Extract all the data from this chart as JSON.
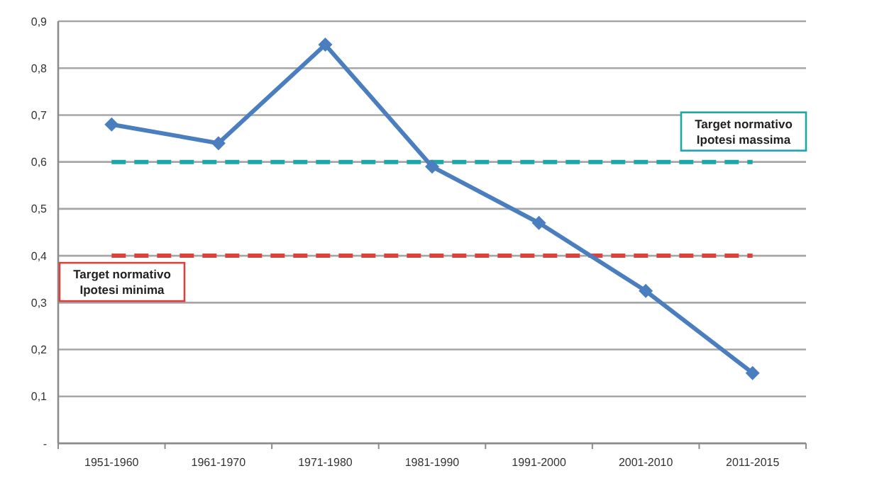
{
  "chart_data": {
    "type": "line",
    "categories": [
      "1951-1960",
      "1961-1970",
      "1971-1980",
      "1981-1990",
      "1991-2000",
      "2001-2010",
      "2011-2015"
    ],
    "series": [
      {
        "color": "#4a7ebf",
        "values": [
          0.68,
          0.64,
          0.85,
          0.59,
          0.47,
          0.325,
          0.15
        ]
      }
    ],
    "ylim": [
      0,
      0.9
    ],
    "yticks": [
      {
        "value": 0,
        "label": "-"
      },
      {
        "value": 0.1,
        "label": "0,1"
      },
      {
        "value": 0.2,
        "label": "0,2"
      },
      {
        "value": 0.3,
        "label": "0,3"
      },
      {
        "value": 0.4,
        "label": "0,4"
      },
      {
        "value": 0.5,
        "label": "0,5"
      },
      {
        "value": 0.6,
        "label": "0,6"
      },
      {
        "value": 0.7,
        "label": "0,7"
      },
      {
        "value": 0.8,
        "label": "0,8"
      },
      {
        "value": 0.9,
        "label": "0,9"
      }
    ],
    "ref_lines": [
      {
        "axis": "y",
        "value": 0.6,
        "label": "Target normativo\nIpotesi massima",
        "color": "#1ba8a8",
        "line_style": "dashed"
      },
      {
        "axis": "y",
        "value": 0.4,
        "label": "Target normativo\nIpotesi minima",
        "color": "#d9423d",
        "line_style": "dashed"
      }
    ],
    "grid": "y",
    "marker": "diamond",
    "line_style": "solid"
  }
}
